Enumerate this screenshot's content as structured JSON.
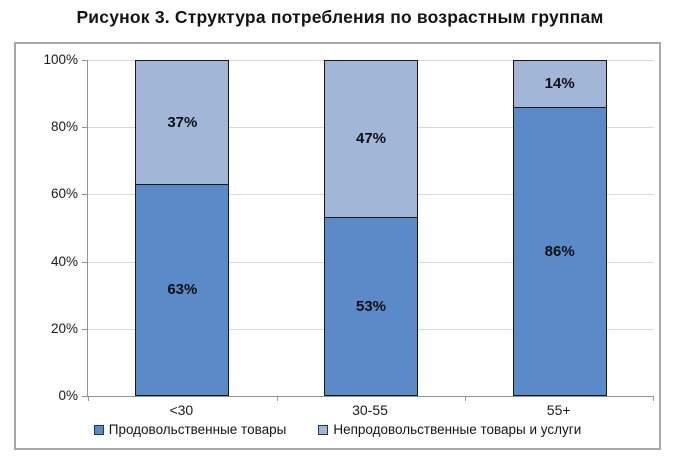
{
  "chart_data": {
    "type": "bar",
    "variant": "stacked-100",
    "title": "Рисунок 3. Структура потребления по возрастным группам",
    "categories": [
      "<30",
      "30-55",
      "55+"
    ],
    "series": [
      {
        "name": "Продовольственные товары",
        "color": "#5b8ac9",
        "values": [
          63,
          53,
          86
        ]
      },
      {
        "name": "Непродовольственные товары и услуги",
        "color": "#a2b6d8",
        "values": [
          37,
          47,
          14
        ]
      }
    ],
    "value_suffix": "%",
    "y_ticks": [
      "100%",
      "80%",
      "60%",
      "40%",
      "20%",
      "0%"
    ],
    "ylim": [
      0,
      100
    ],
    "grid": true,
    "legend_position": "bottom",
    "bar_border_color": "#181818"
  }
}
